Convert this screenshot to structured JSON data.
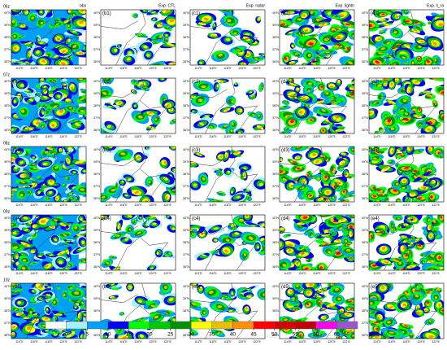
{
  "figure": {
    "columns": [
      "obs",
      "Exp. CTL",
      "Exp. radar",
      "Exp. lightn",
      "Exp. li_ra"
    ],
    "rows": [
      {
        "time": "06z",
        "labels": [
          "(a1)",
          "(b1)",
          "(c1)",
          "(d1)",
          "(e1)"
        ]
      },
      {
        "time": "07z",
        "labels": [
          "(a2)",
          "(b2)",
          "(c2)",
          "(d2)",
          "(e2)"
        ]
      },
      {
        "time": "08z",
        "labels": [
          "(a3)",
          "(b3)",
          "(c3)",
          "(d3)",
          "(e3)"
        ]
      },
      {
        "time": "09z",
        "labels": [
          "(a4)",
          "(b4)",
          "(c4)",
          "(d4)",
          "(e4)"
        ]
      },
      {
        "time": "10z",
        "labels": [
          "(a5)",
          "(b5)",
          "(c5)",
          "(d5)",
          "(e5)"
        ]
      }
    ],
    "lat_ticks": [
      "40°N",
      "39°N",
      "38°N",
      "37°N",
      "36°N"
    ],
    "lon_ticks": [
      "114°E",
      "116°E",
      "118°E",
      "120°E",
      "122°E"
    ],
    "colorbar": {
      "levels": [
        0,
        5,
        10,
        15,
        20,
        25,
        30,
        35,
        40,
        45,
        50,
        55,
        60,
        65
      ],
      "colors": [
        "#ffffff",
        "#a6f0ff",
        "#00a0f6",
        "#0000f6",
        "#00ff00",
        "#00c800",
        "#009000",
        "#ffff00",
        "#e7c000",
        "#ff9000",
        "#ff0000",
        "#d60000",
        "#c00000",
        "#ff00f0",
        "#9955c9"
      ],
      "unit": "dBZ"
    }
  }
}
